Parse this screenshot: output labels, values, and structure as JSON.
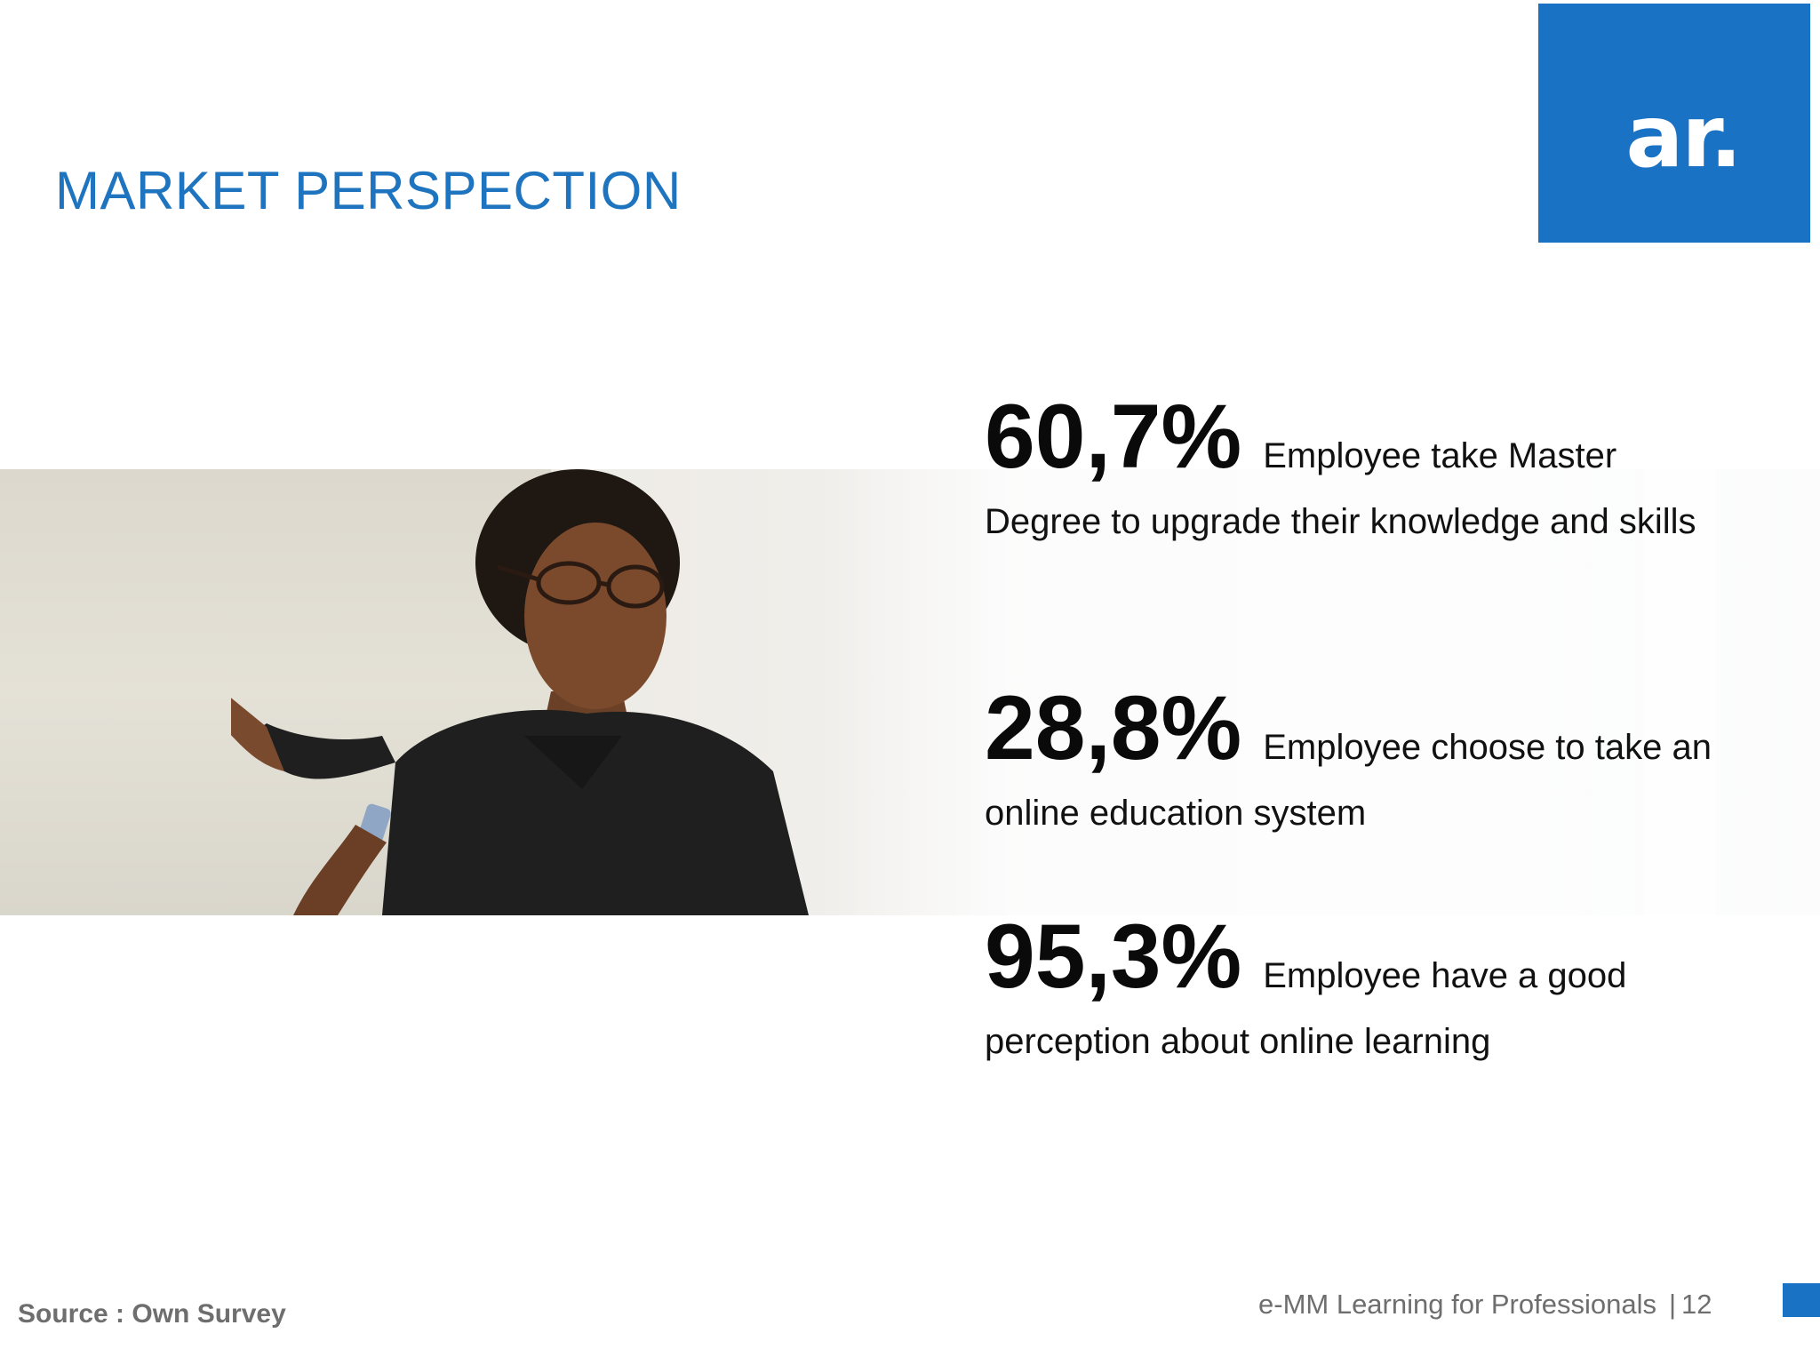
{
  "slide": {
    "title": "MARKET PERSPECTION",
    "logo_text": "ar.",
    "accent_color": "#1a72c4",
    "image": "photo-teacher-pointing-at-whiteboard"
  },
  "stats": [
    {
      "value": "60,7%",
      "lead": "Employee take Master",
      "rest": "Degree to upgrade their knowledge and skills"
    },
    {
      "value": "28,8%",
      "lead": "Employee choose to take an",
      "rest": "online education system"
    },
    {
      "value": "95,3%",
      "lead": "Employee have a good",
      "rest": "perception about online learning"
    }
  ],
  "footer": {
    "source": "Source : Own Survey",
    "title": "e-MM Learning for Professionals",
    "separator": "|",
    "page": "12"
  }
}
